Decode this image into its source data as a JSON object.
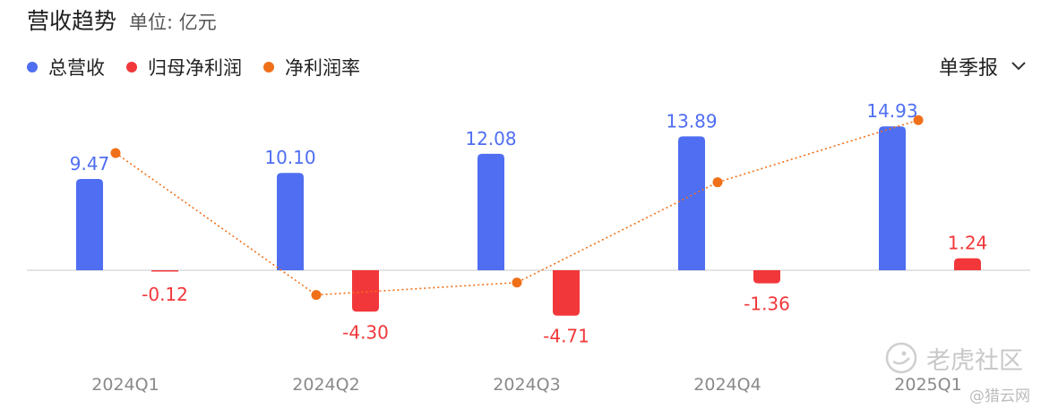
{
  "header": {
    "title": "营收趋势",
    "unit": "单位: 亿元"
  },
  "legend": [
    {
      "label": "总营收",
      "color": "#4f6ef2"
    },
    {
      "label": "归母净利润",
      "color": "#f2373a"
    },
    {
      "label": "净利润率",
      "color": "#f07019"
    }
  ],
  "period_select": {
    "label": "单季报",
    "icon": "chevron-down-icon"
  },
  "watermark": {
    "brand": "老虎社区",
    "source": "@猎云网"
  },
  "chart_data": {
    "type": "bar",
    "categories": [
      "2024Q1",
      "2024Q2",
      "2024Q3",
      "2024Q4",
      "2025Q1"
    ],
    "series": [
      {
        "name": "总营收",
        "type": "bar",
        "color": "#4f6ef2",
        "values": [
          9.47,
          10.1,
          12.08,
          13.89,
          14.93
        ],
        "labels": [
          "9.47",
          "10.10",
          "12.08",
          "13.89",
          "14.93"
        ]
      },
      {
        "name": "归母净利润",
        "type": "bar",
        "color": "#f2373a",
        "values": [
          -0.12,
          -4.3,
          -4.71,
          -1.36,
          1.24
        ],
        "labels": [
          "-0.12",
          "-4.30",
          "-4.71",
          "-1.36",
          "1.24"
        ]
      },
      {
        "name": "净利润率",
        "type": "line",
        "color": "#f07019",
        "values": [
          -1.3,
          -42.6,
          -39.0,
          -9.8,
          8.3
        ],
        "unit": "%"
      }
    ],
    "value_axis_range": [
      -6.0,
      16.0
    ],
    "margin_axis_range": [
      -50,
      12
    ],
    "grid": false,
    "legend_position": "top-left"
  }
}
